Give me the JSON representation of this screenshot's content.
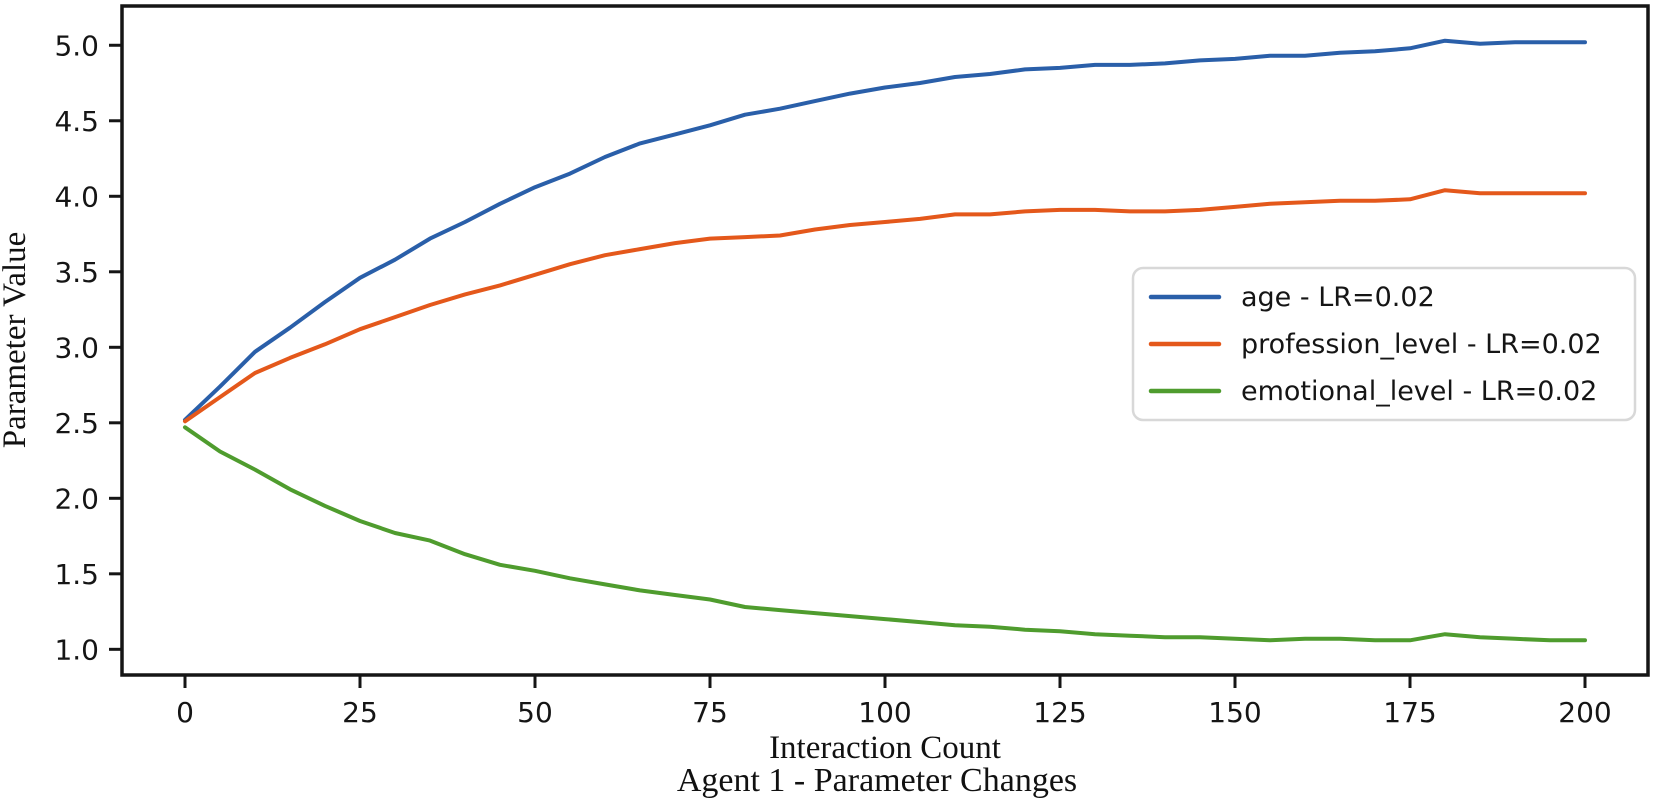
{
  "figure": {
    "background": "#ffffff",
    "frame_color": "#151515",
    "legend_border_color": "#d8d8d8"
  },
  "chart_data": {
    "type": "line",
    "title": "Agent 1 - Parameter Changes",
    "xlabel": "Interaction Count",
    "ylabel": "Parameter Value",
    "grid": false,
    "legend_position": "center right",
    "xlim": [
      -9,
      209
    ],
    "ylim": [
      0.83,
      5.26
    ],
    "x_tick_values": [
      0,
      25,
      50,
      75,
      100,
      125,
      150,
      175,
      200
    ],
    "x_tick_labels": [
      "0",
      "25",
      "50",
      "75",
      "100",
      "125",
      "150",
      "175",
      "200"
    ],
    "y_tick_values": [
      1.0,
      1.5,
      2.0,
      2.5,
      3.0,
      3.5,
      4.0,
      4.5,
      5.0
    ],
    "y_tick_labels": [
      "1.0",
      "1.5",
      "2.0",
      "2.5",
      "3.0",
      "3.5",
      "4.0",
      "4.5",
      "5.0"
    ],
    "x": [
      0,
      5,
      10,
      15,
      20,
      25,
      30,
      35,
      40,
      45,
      50,
      55,
      60,
      65,
      70,
      75,
      80,
      85,
      90,
      95,
      100,
      105,
      110,
      115,
      120,
      125,
      130,
      135,
      140,
      145,
      150,
      155,
      160,
      165,
      170,
      175,
      180,
      185,
      190,
      195,
      200
    ],
    "series": [
      {
        "id": "age",
        "name": "age - LR=0.02",
        "color": "#2a5fa9",
        "values": [
          2.52,
          2.74,
          2.97,
          3.13,
          3.3,
          3.46,
          3.58,
          3.72,
          3.83,
          3.95,
          4.06,
          4.15,
          4.26,
          4.35,
          4.41,
          4.47,
          4.54,
          4.58,
          4.63,
          4.68,
          4.72,
          4.75,
          4.79,
          4.81,
          4.84,
          4.85,
          4.87,
          4.87,
          4.88,
          4.9,
          4.91,
          4.93,
          4.93,
          4.95,
          4.96,
          4.98,
          5.03,
          5.01,
          5.02,
          5.02,
          5.02
        ]
      },
      {
        "id": "profession_level",
        "name": "profession_level - LR=0.02",
        "color": "#e4581b",
        "values": [
          2.51,
          2.67,
          2.83,
          2.93,
          3.02,
          3.12,
          3.2,
          3.28,
          3.35,
          3.41,
          3.48,
          3.55,
          3.61,
          3.65,
          3.69,
          3.72,
          3.73,
          3.74,
          3.78,
          3.81,
          3.83,
          3.85,
          3.88,
          3.88,
          3.9,
          3.91,
          3.91,
          3.9,
          3.9,
          3.91,
          3.93,
          3.95,
          3.96,
          3.97,
          3.97,
          3.98,
          4.04,
          4.02,
          4.02,
          4.02,
          4.02
        ]
      },
      {
        "id": "emotional_level",
        "name": "emotional_level - LR=0.02",
        "color": "#4f9c2e",
        "values": [
          2.47,
          2.31,
          2.19,
          2.06,
          1.95,
          1.85,
          1.77,
          1.72,
          1.63,
          1.56,
          1.52,
          1.47,
          1.43,
          1.39,
          1.36,
          1.33,
          1.28,
          1.26,
          1.24,
          1.22,
          1.2,
          1.18,
          1.16,
          1.15,
          1.13,
          1.12,
          1.1,
          1.09,
          1.08,
          1.08,
          1.07,
          1.06,
          1.07,
          1.07,
          1.06,
          1.06,
          1.1,
          1.08,
          1.07,
          1.06,
          1.06
        ]
      }
    ]
  }
}
